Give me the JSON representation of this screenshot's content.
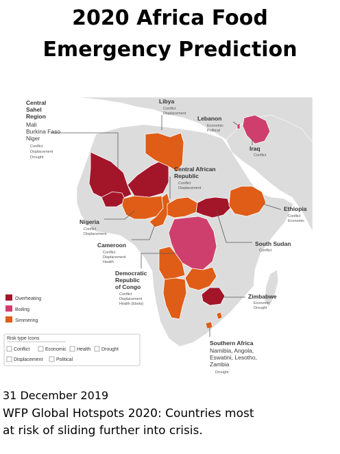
{
  "title_line1": "2020 Africa Food",
  "title_line2": "Emergency Prediction",
  "colors": {
    "overheating": "#a3162a",
    "boiling": "#cf3f6e",
    "simmering": "#df5d17",
    "land": "#dcdcdc",
    "sea": "#ffffff",
    "border": "#ffffff"
  },
  "map": {
    "labels": {
      "sahel": {
        "name1": "Central",
        "name2": "Sahel",
        "name3": "Region",
        "countries": [
          "Mali",
          "Burkina Faso",
          "Niger"
        ],
        "risks": [
          "Conflict",
          "Displacement",
          "Drought"
        ]
      },
      "libya": {
        "name": "Libya",
        "risks": [
          "Conflict",
          "Displacement"
        ]
      },
      "lebanon": {
        "name": "Lebanon",
        "risks": [
          "Economic",
          "Political"
        ]
      },
      "iraq": {
        "name": "Iraq",
        "risks": [
          "Conflict"
        ]
      },
      "car": {
        "name1": "Central African",
        "name2": "Republic",
        "risks": [
          "Conflict",
          "Displacement"
        ]
      },
      "ethiopia": {
        "name": "Ethiopia",
        "risks": [
          "Conflict",
          "Economic"
        ]
      },
      "nigeria": {
        "name": "Nigeria",
        "risks": [
          "Conflict",
          "Displacement"
        ]
      },
      "cameroon": {
        "name": "Cameroon",
        "risks": [
          "Conflict",
          "Displacement",
          "Health"
        ]
      },
      "south_sudan": {
        "name": "South Sudan",
        "risks": [
          "Conflict"
        ]
      },
      "drc": {
        "name1": "Democratic",
        "name2": "Republic",
        "name3": "of Congo",
        "risks": [
          "Conflict",
          "Displacement",
          "Health (Ebola)"
        ]
      },
      "zimbabwe": {
        "name": "Zimbabwe",
        "risks": [
          "Economic",
          "Drought"
        ]
      },
      "southern": {
        "name": "Southern Africa",
        "countries": [
          "Namibia, Angola,",
          "Eswatini, Lesotho,",
          "Zambia"
        ],
        "risks": [
          "Drought"
        ]
      }
    },
    "legend": {
      "overheating": "Overheating",
      "boiling": "Boiling",
      "simmering": "Simmering"
    },
    "risk_box": {
      "title": "Risk type Icons",
      "row1": [
        "Conflict",
        "Economic",
        "Health",
        "Drought"
      ],
      "row2": [
        "Displacement",
        "Political"
      ]
    }
  },
  "date": "31 December 2019",
  "description_line1": "WFP Global Hotspots 2020: Countries most",
  "description_line2": "at risk of sliding further into crisis."
}
